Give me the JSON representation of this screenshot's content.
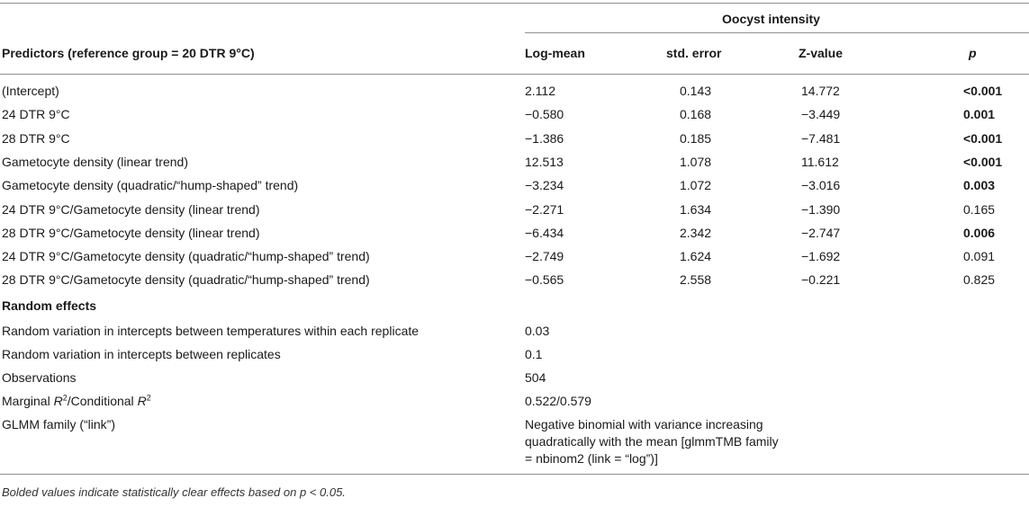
{
  "header": {
    "group_title": "Oocyst intensity",
    "predictors_label": "Predictors (reference group = 20 DTR 9°C)",
    "col_logmean": "Log-mean",
    "col_se": "std. error",
    "col_z": "Z-value",
    "col_p": "p"
  },
  "rows": [
    {
      "label": "(Intercept)",
      "logmean": "2.112",
      "se": "0.143",
      "z": "14.772",
      "p": "<0.001",
      "p_bold": true
    },
    {
      "label": "24 DTR 9°C",
      "logmean": "−0.580",
      "se": "0.168",
      "z": "−3.449",
      "p": "0.001",
      "p_bold": true
    },
    {
      "label": "28 DTR 9°C",
      "logmean": "−1.386",
      "se": "0.185",
      "z": "−7.481",
      "p": "<0.001",
      "p_bold": true
    },
    {
      "label": "Gametocyte density (linear trend)",
      "logmean": "12.513",
      "se": "1.078",
      "z": "11.612",
      "p": "<0.001",
      "p_bold": true
    },
    {
      "label": "Gametocyte density (quadratic/“hump-shaped” trend)",
      "logmean": "−3.234",
      "se": "1.072",
      "z": "−3.016",
      "p": "0.003",
      "p_bold": true
    },
    {
      "label": "24 DTR 9°C/Gametocyte density (linear trend)",
      "logmean": "−2.271",
      "se": "1.634",
      "z": "−1.390",
      "p": "0.165",
      "p_bold": false
    },
    {
      "label": "28 DTR 9°C/Gametocyte density (linear trend)",
      "logmean": "−6.434",
      "se": "2.342",
      "z": "−2.747",
      "p": "0.006",
      "p_bold": true
    },
    {
      "label": "24 DTR 9°C/Gametocyte density (quadratic/“hump-shaped” trend)",
      "logmean": "−2.749",
      "se": "1.624",
      "z": "−1.692",
      "p": "0.091",
      "p_bold": false
    },
    {
      "label": "28 DTR 9°C/Gametocyte density (quadratic/“hump-shaped” trend)",
      "logmean": "−0.565",
      "se": "2.558",
      "z": "−0.221",
      "p": "0.825",
      "p_bold": false
    }
  ],
  "random_effects": {
    "title": "Random effects",
    "items": [
      {
        "label": "Random variation in intercepts between temperatures within each replicate",
        "value": "0.03"
      },
      {
        "label": "Random variation in intercepts between replicates",
        "value": "0.1"
      },
      {
        "label": "Observations",
        "value": "504"
      }
    ],
    "r2": {
      "marginal": "Marginal",
      "conditional": "/Conditional",
      "letter": "R",
      "sup": "2",
      "value": "0.522/0.579"
    },
    "family": {
      "label": "GLMM family (“link”)",
      "line1": "Negative binomial with variance increasing",
      "line2": "quadratically with the mean [glmmTMB family",
      "line3": "= nbinom2 (link = “log”)]"
    }
  },
  "footnote": "Bolded values indicate statistically clear effects based on p < 0.05."
}
